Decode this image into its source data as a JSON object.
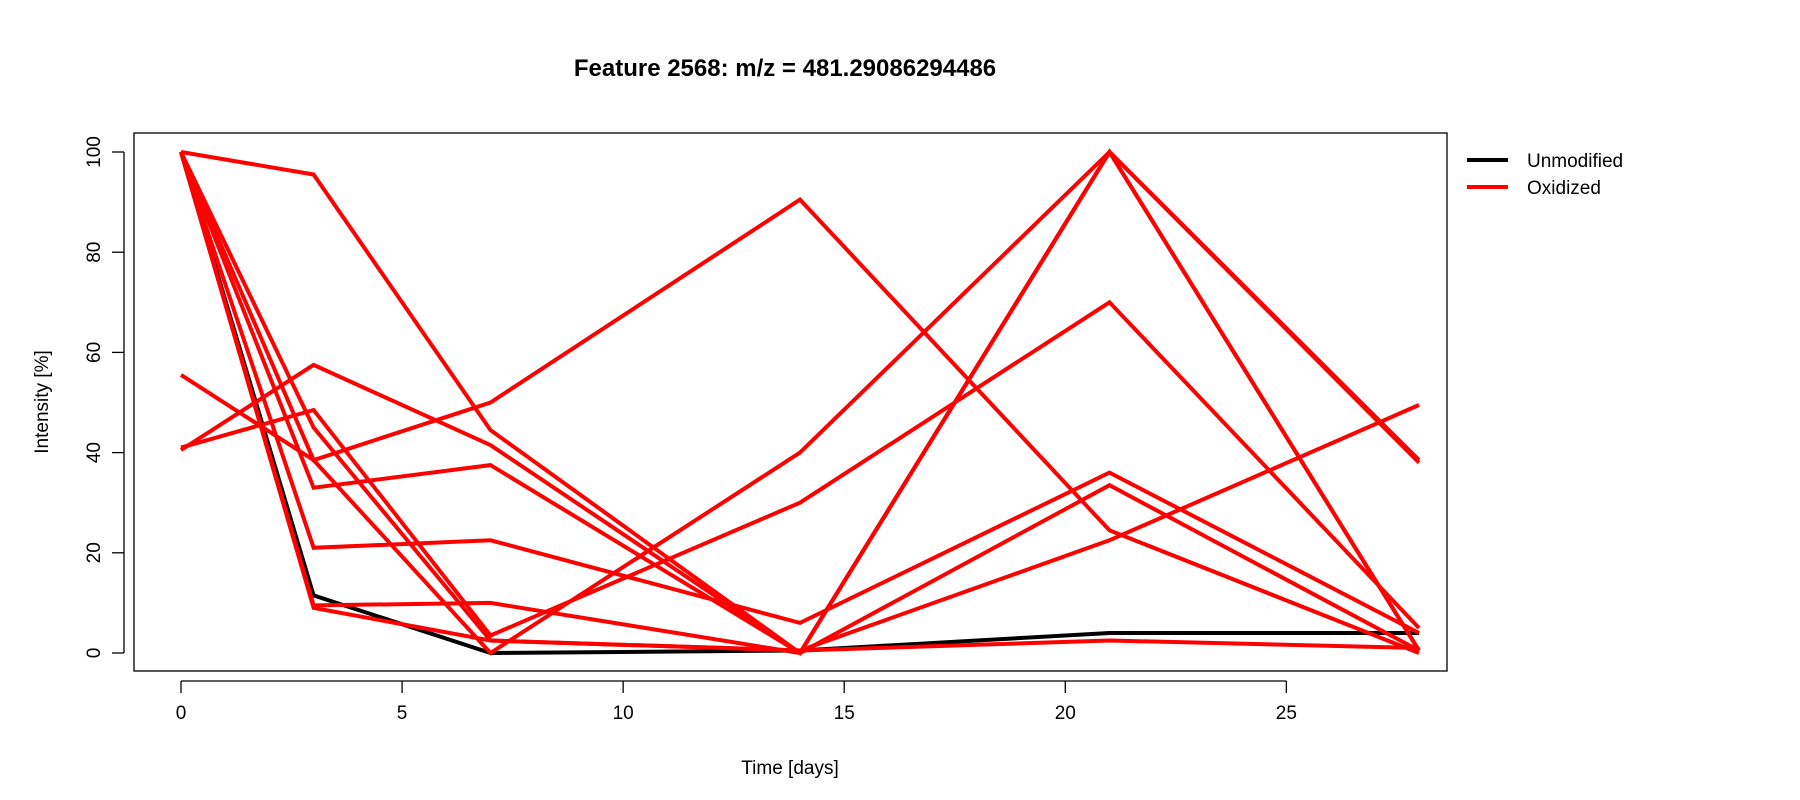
{
  "chart_data": {
    "type": "line",
    "title": "Feature 2568: m/z = 481.29086294486",
    "xlabel": "Time [days]",
    "ylabel": "Intensity [%]",
    "x": [
      0,
      3,
      7,
      14,
      21,
      28
    ],
    "xlim": [
      0,
      28
    ],
    "ylim": [
      0,
      100
    ],
    "xticks": [
      0,
      5,
      10,
      15,
      20,
      25
    ],
    "yticks": [
      0,
      20,
      40,
      60,
      80,
      100
    ],
    "grid": false,
    "legend_position": "top-right, outside plot",
    "legend": [
      {
        "label": "Unmodified",
        "color": "#000000"
      },
      {
        "label": "Oxidized",
        "color": "#ff0000"
      }
    ],
    "series": [
      {
        "group": "Unmodified",
        "color": "#000000",
        "values": [
          100,
          11.5,
          0,
          0.5,
          4,
          4
        ]
      },
      {
        "group": "Oxidized",
        "color": "#ff0000",
        "values": [
          100,
          95.5,
          44.5,
          0,
          100,
          38
        ]
      },
      {
        "group": "Oxidized",
        "color": "#ff0000",
        "values": [
          100,
          38.5,
          50,
          90.5,
          24.5,
          0
        ]
      },
      {
        "group": "Oxidized",
        "color": "#ff0000",
        "values": [
          100,
          33,
          37.5,
          0,
          100,
          38.5
        ]
      },
      {
        "group": "Oxidized",
        "color": "#ff0000",
        "values": [
          100,
          21,
          22.5,
          6,
          36,
          4
        ]
      },
      {
        "group": "Oxidized",
        "color": "#ff0000",
        "values": [
          100,
          9.5,
          10,
          0,
          100,
          0.5
        ]
      },
      {
        "group": "Oxidized",
        "color": "#ff0000",
        "values": [
          100,
          9,
          2.5,
          0.5,
          2.5,
          1
        ]
      },
      {
        "group": "Oxidized",
        "color": "#ff0000",
        "values": [
          55.5,
          38.5,
          0,
          40,
          100,
          0.5
        ]
      },
      {
        "group": "Oxidized",
        "color": "#ff0000",
        "values": [
          41,
          48.5,
          3.5,
          30,
          70,
          5
        ]
      },
      {
        "group": "Oxidized",
        "color": "#ff0000",
        "values": [
          40.5,
          57.5,
          41.5,
          0,
          33.5,
          0.5
        ]
      },
      {
        "group": "Oxidized",
        "color": "#ff0000",
        "values": [
          100,
          45,
          2.5,
          0.5,
          22.5,
          49.5
        ]
      }
    ]
  }
}
